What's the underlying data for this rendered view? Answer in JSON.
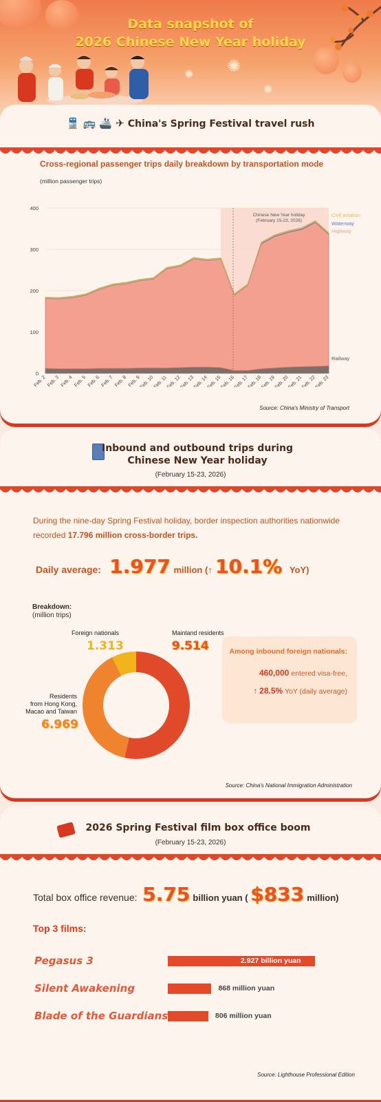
{
  "header": {
    "title_line1": "Data snapshot of",
    "title_line2": "2026 Chinese New Year holiday"
  },
  "travel": {
    "title": "China's Spring Festival travel rush",
    "chart_title": "Cross-regional passenger trips daily breakdown by transportation mode",
    "unit": "(million passenger trips)",
    "source": "Source: China's Ministry of Transport",
    "holiday_note_1": "Chinese New Year holiday",
    "holiday_note_2": "(February 15-23, 2026)"
  },
  "chart_data": [
    {
      "type": "area",
      "title": "Cross-regional passenger trips daily breakdown by transportation mode",
      "ylabel": "(million passenger trips)",
      "ylim": [
        0,
        400
      ],
      "yticks": [
        0,
        100,
        200,
        300,
        400
      ],
      "categories": [
        "Feb. 2",
        "Feb. 3",
        "Feb. 4",
        "Feb. 5",
        "Feb. 6",
        "Feb. 7",
        "Feb. 8",
        "Feb. 9",
        "Feb. 10",
        "Feb. 11",
        "Feb. 12",
        "Feb. 13",
        "Feb. 14",
        "Feb. 15",
        "Feb. 16",
        "Feb. 17",
        "Feb. 18",
        "Feb. 19",
        "Feb. 20",
        "Feb. 21",
        "Feb. 22",
        "Feb. 23"
      ],
      "stacked": true,
      "series": [
        {
          "name": "Railway",
          "color": "#7d6f6c",
          "values": [
            12,
            11,
            11,
            11,
            12,
            12,
            12,
            13,
            13,
            13,
            14,
            15,
            15,
            14,
            7,
            7,
            11,
            13,
            15,
            16,
            17,
            18
          ]
        },
        {
          "name": "Highway",
          "color": "#f4a090",
          "values": [
            169,
            169,
            172,
            178,
            191,
            201,
            205,
            211,
            215,
            240,
            245,
            262,
            258,
            262,
            182,
            206,
            302,
            318,
            326,
            332,
            348,
            318
          ]
        },
        {
          "name": "Waterway",
          "color": "#5b7fc4",
          "values": [
            1,
            1,
            1,
            1,
            1,
            1,
            1,
            1,
            1,
            1,
            1,
            1,
            1,
            1,
            1,
            1,
            2,
            2,
            2,
            2,
            2,
            2
          ]
        },
        {
          "name": "Civil aviation",
          "color": "#e8b84a",
          "values": [
            2,
            2,
            2,
            2,
            2,
            2,
            2,
            2,
            2,
            2,
            2,
            2,
            2,
            2,
            2,
            2,
            2,
            2,
            2,
            2,
            2,
            2
          ]
        }
      ],
      "highlight_range": [
        "Feb. 15",
        "Feb. 23"
      ],
      "highlight_label": [
        "Chinese New Year holiday",
        "(February 15-23, 2026)"
      ]
    },
    {
      "type": "pie",
      "title": "Breakdown:",
      "unit": "(million trips)",
      "slices": [
        {
          "label": "Mainland residents",
          "value": 9.514,
          "color": "#e04a2a"
        },
        {
          "label": "Residents from Hong Kong, Macao and Taiwan",
          "value": 6.969,
          "color": "#f0832e"
        },
        {
          "label": "Foreign nationals",
          "value": 1.313,
          "color": "#f2b41a"
        }
      ]
    },
    {
      "type": "bar",
      "orientation": "horizontal",
      "title": "Top 3 films:",
      "categories": [
        "Pegasus 3",
        "Silent Awakening",
        "Blade of the Guardians"
      ],
      "values": [
        2927,
        868,
        806
      ],
      "value_labels": [
        "2.927 billion yuan",
        "868 million yuan",
        "806 million yuan"
      ],
      "color": "#e24a2a"
    }
  ],
  "inbound": {
    "title_line1": "Inbound and outbound trips during",
    "title_line2": "Chinese New Year holiday",
    "subtitle": "(February 15-23, 2026)",
    "para_1": "During the nine-day Spring Festival holiday, border inspection authorities nationwide recorded ",
    "para_bold": "17.796 million cross-border trips.",
    "daily_label": "Daily average:",
    "daily_value": "1.977",
    "daily_unit": "million (↑",
    "daily_pct": "10.1%",
    "daily_yoy": "YoY)",
    "breakdown_title": "Breakdown:",
    "breakdown_unit": "(million trips)",
    "foreign_label": "Foreign nationals",
    "foreign_value": "1.313",
    "mainland_label": "Mainland residents",
    "mainland_value": "9.514",
    "hmt_label_1": "Residents",
    "hmt_label_2": "from Hong Kong,",
    "hmt_label_3": "Macao and Taiwan",
    "hmt_value": "6.969",
    "box_title": "Among inbound foreign nationals:",
    "box_line1_value": "460,000",
    "box_line1_text": "entered visa-free,",
    "box_line2_arrow": "↑",
    "box_line2_value": "28.5%",
    "box_line2_text": "YoY (daily average)",
    "source": "Source: China's National Immigration Administration"
  },
  "film": {
    "title": "2026 Spring Festival film box office boom",
    "subtitle": "(February 15-23, 2026)",
    "revenue_label": "Total box office revenue:",
    "revenue_value": "5.75",
    "revenue_unit": "billion yuan (",
    "revenue_usd": "$833",
    "revenue_usd_unit": "million)",
    "top3": "Top 3 films:",
    "source": "Source: Lighthouse Professional Edition"
  }
}
